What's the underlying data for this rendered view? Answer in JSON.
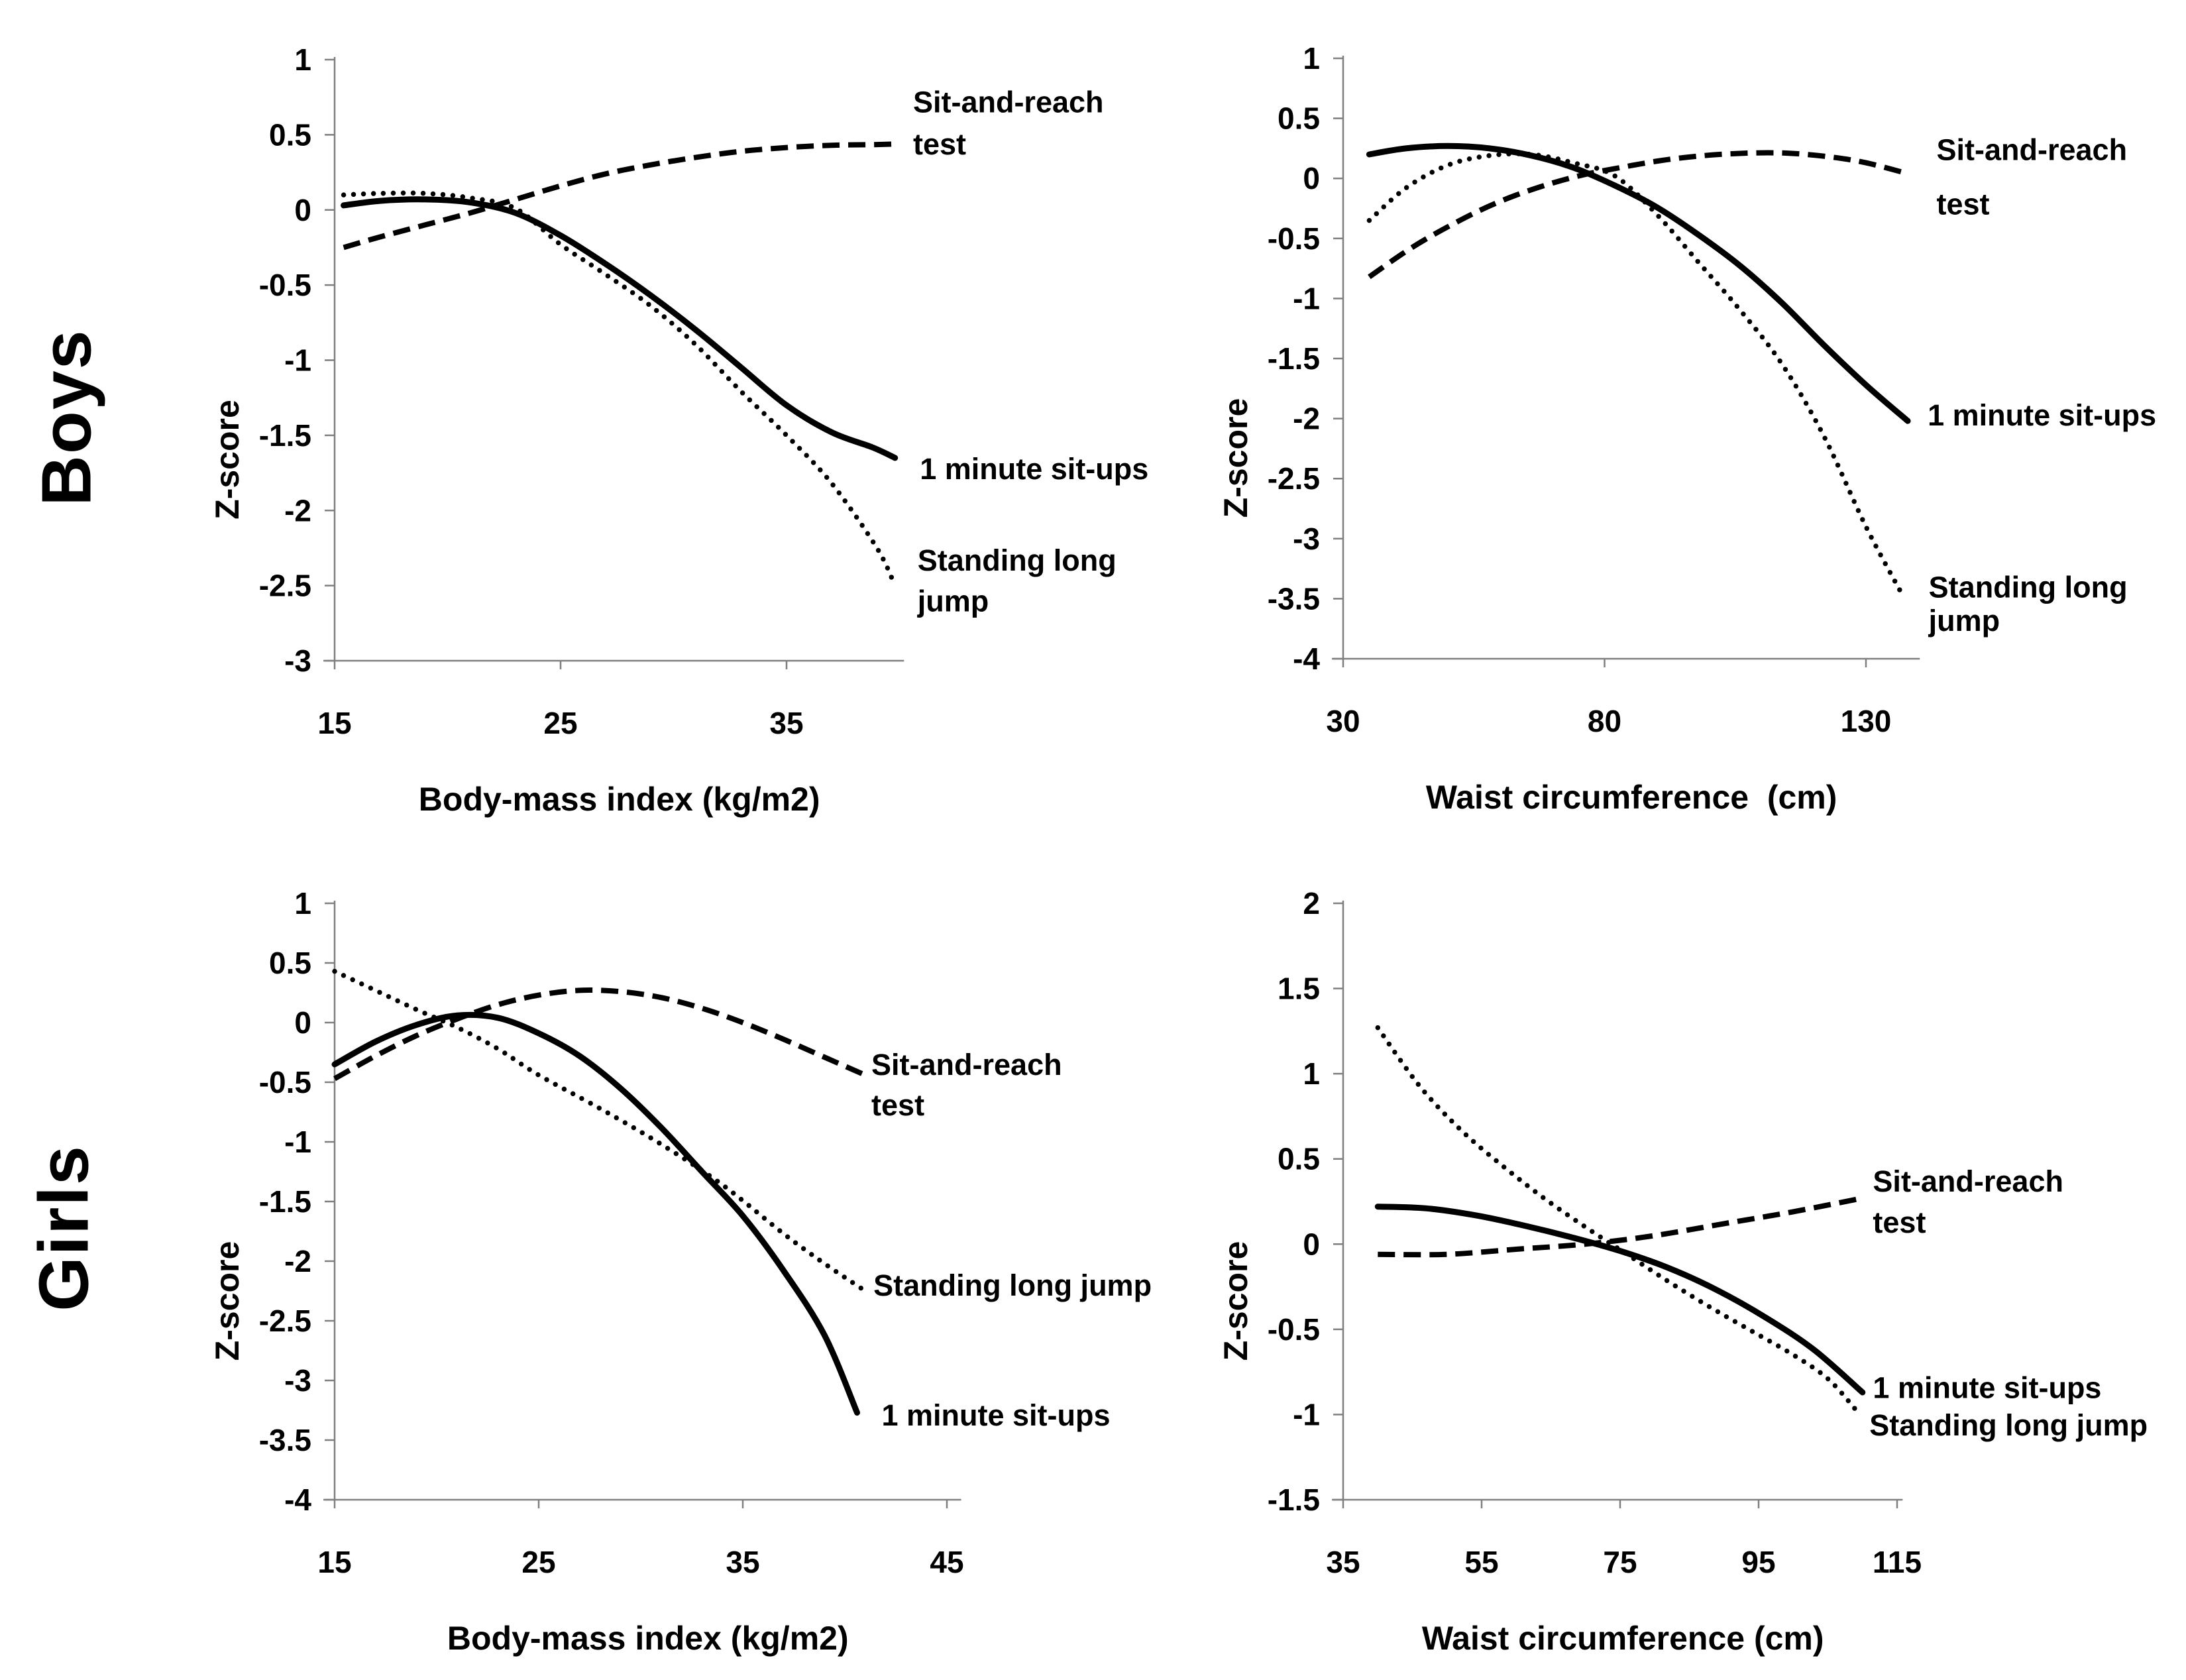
{
  "figure": {
    "row_labels": [
      {
        "text": "Boys"
      },
      {
        "text": "Girls"
      }
    ],
    "colors": {
      "curve": "#000000",
      "axis": "#7f7f7f",
      "text": "#000000",
      "background": "#ffffff"
    }
  },
  "chart_data": [
    {
      "id": "boys-bmi",
      "row": "Boys",
      "type": "line",
      "xlabel": "Body-mass index (kg/m2)",
      "ylabel": "Z-score",
      "xlim": [
        15,
        40.2
      ],
      "ylim": [
        -3,
        1
      ],
      "xticks": [
        15,
        25,
        35
      ],
      "yticks": [
        1,
        0.5,
        0,
        -0.5,
        -1,
        -1.5,
        -2,
        -2.5,
        -3
      ],
      "grid": false,
      "legend_position": "inline-annotations",
      "series": [
        {
          "name": "Sit-and-reach test",
          "line_style": "dashed",
          "x": [
            15.4,
            17,
            19,
            21,
            23,
            25,
            27,
            29,
            31,
            33,
            35,
            37,
            39,
            40
          ],
          "y": [
            -0.25,
            -0.18,
            -0.1,
            -0.02,
            0.07,
            0.16,
            0.24,
            0.3,
            0.35,
            0.39,
            0.415,
            0.43,
            0.435,
            0.44
          ],
          "annotations": [
            {
              "text": "Sit-and-reach",
              "x": 40.6,
              "y": 0.72
            },
            {
              "text": "test",
              "x": 40.6,
              "y": 0.44
            }
          ]
        },
        {
          "name": "1 minute sit-ups",
          "line_style": "solid",
          "x": [
            15.4,
            17,
            19,
            21,
            23,
            25,
            27,
            29,
            31,
            33,
            35,
            37,
            38.8,
            39.8
          ],
          "y": [
            0.03,
            0.06,
            0.07,
            0.05,
            -0.02,
            -0.17,
            -0.36,
            -0.57,
            -0.8,
            -1.05,
            -1.3,
            -1.48,
            -1.58,
            -1.65
          ],
          "annotations": [
            {
              "text": "1 minute sit-ups",
              "x": 40.9,
              "y": -1.72
            }
          ]
        },
        {
          "name": "Standing long jump",
          "line_style": "dotted",
          "x": [
            15.4,
            17,
            19,
            21,
            23,
            25,
            27,
            29,
            31,
            33,
            35,
            37,
            39,
            39.8
          ],
          "y": [
            0.1,
            0.11,
            0.11,
            0.08,
            0.01,
            -0.23,
            -0.43,
            -0.64,
            -0.9,
            -1.21,
            -1.5,
            -1.82,
            -2.25,
            -2.5
          ],
          "annotations": [
            {
              "text": "Standing long",
              "x": 40.8,
              "y": -2.33
            },
            {
              "text": "jump",
              "x": 40.8,
              "y": -2.6
            }
          ]
        }
      ]
    },
    {
      "id": "boys-waist",
      "row": "Boys",
      "type": "line",
      "xlabel": "Waist circumference  (cm)",
      "ylabel": "Z-score",
      "xlim": [
        30,
        140.3
      ],
      "ylim": [
        -4,
        1
      ],
      "xticks": [
        30,
        80,
        130
      ],
      "yticks": [
        1,
        0.5,
        0,
        -0.5,
        -1,
        -1.5,
        -2,
        -2.5,
        -3,
        -3.5,
        -4
      ],
      "grid": false,
      "legend_position": "inline-annotations",
      "series": [
        {
          "name": "Sit-and-reach test",
          "line_style": "dashed",
          "x": [
            35,
            43,
            51,
            59,
            67,
            75,
            83,
            91,
            99,
            107,
            115,
            123,
            130,
            138
          ],
          "y": [
            -0.82,
            -0.58,
            -0.38,
            -0.21,
            -0.08,
            0.02,
            0.09,
            0.15,
            0.19,
            0.21,
            0.21,
            0.18,
            0.13,
            0.04
          ],
          "annotations": [
            {
              "text": "Sit-and-reach",
              "x": 143.5,
              "y": 0.24
            },
            {
              "text": "test",
              "x": 143.5,
              "y": -0.21
            }
          ]
        },
        {
          "name": "1 minute sit-ups",
          "line_style": "solid",
          "x": [
            35,
            42,
            50,
            58,
            66,
            74,
            82,
            90,
            98,
            106,
            114,
            122,
            130,
            138
          ],
          "y": [
            0.2,
            0.25,
            0.27,
            0.25,
            0.19,
            0.09,
            -0.06,
            -0.24,
            -0.47,
            -0.73,
            -1.04,
            -1.39,
            -1.72,
            -2.02
          ],
          "annotations": [
            {
              "text": "1 minute sit-ups",
              "x": 141.8,
              "y": -1.97
            }
          ]
        },
        {
          "name": "Standing long jump",
          "line_style": "dotted",
          "x": [
            35,
            42,
            50,
            58,
            66,
            74,
            82,
            90,
            98,
            106,
            114,
            122,
            130,
            137
          ],
          "y": [
            -0.35,
            -0.08,
            0.11,
            0.19,
            0.2,
            0.13,
            0.02,
            -0.3,
            -0.7,
            -1.1,
            -1.55,
            -2.15,
            -2.9,
            -3.47
          ],
          "annotations": [
            {
              "text": "Standing long",
              "x": 142,
              "y": -3.4
            },
            {
              "text": "jump",
              "x": 142,
              "y": -3.68
            }
          ]
        }
      ]
    },
    {
      "id": "girls-bmi",
      "row": "Girls",
      "type": "line",
      "xlabel": "Body-mass index (kg/m2)",
      "ylabel": "Z-score",
      "xlim": [
        15,
        45.7
      ],
      "ylim": [
        -4,
        1
      ],
      "xticks": [
        15,
        25,
        35,
        45
      ],
      "yticks": [
        1,
        0.5,
        0,
        -0.5,
        -1,
        -1.5,
        -2,
        -2.5,
        -3,
        -3.5,
        -4
      ],
      "grid": false,
      "legend_position": "inline-annotations",
      "series": [
        {
          "name": "Sit-and-reach test",
          "line_style": "dashed",
          "x": [
            15,
            17,
            19,
            21,
            23,
            25,
            27,
            29,
            31,
            33,
            35,
            37,
            39,
            41
          ],
          "y": [
            -0.47,
            -0.28,
            -0.11,
            0.03,
            0.15,
            0.23,
            0.27,
            0.26,
            0.21,
            0.12,
            0.0,
            -0.14,
            -0.29,
            -0.44
          ],
          "annotations": [
            {
              "text": "Sit-and-reach",
              "x": 41.3,
              "y": -0.35
            },
            {
              "text": "test",
              "x": 41.3,
              "y": -0.69
            }
          ]
        },
        {
          "name": "1 minute sit-ups",
          "line_style": "solid",
          "x": [
            15,
            17,
            19,
            21,
            23,
            25,
            27,
            29,
            31,
            33,
            35,
            37,
            39,
            40.6
          ],
          "y": [
            -0.35,
            -0.16,
            -0.02,
            0.06,
            0.04,
            -0.09,
            -0.28,
            -0.55,
            -0.88,
            -1.25,
            -1.62,
            -2.08,
            -2.62,
            -3.27
          ],
          "annotations": [
            {
              "text": "1 minute sit-ups",
              "x": 41.8,
              "y": -3.29
            }
          ]
        },
        {
          "name": "Standing long jump",
          "line_style": "dotted",
          "x": [
            15,
            17,
            19,
            21,
            23,
            25,
            28,
            31,
            34,
            37,
            39,
            41
          ],
          "y": [
            0.43,
            0.27,
            0.11,
            -0.04,
            -0.22,
            -0.44,
            -0.72,
            -1.02,
            -1.36,
            -1.77,
            -2.02,
            -2.25
          ],
          "annotations": [
            {
              "text": "Standing long jump",
              "x": 41.4,
              "y": -2.2
            }
          ]
        }
      ]
    },
    {
      "id": "girls-waist",
      "row": "Girls",
      "type": "line",
      "xlabel": "Waist circumference (cm)",
      "ylabel": "Z-score",
      "xlim": [
        35,
        115.8
      ],
      "ylim": [
        -1.5,
        2
      ],
      "xticks": [
        35,
        55,
        75,
        95,
        115
      ],
      "yticks": [
        2,
        1.5,
        1,
        0.5,
        0,
        -0.5,
        -1,
        -1.5
      ],
      "grid": false,
      "legend_position": "inline-annotations",
      "series": [
        {
          "name": "Sit-and-reach test",
          "line_style": "dashed",
          "x": [
            40,
            50,
            60,
            70,
            80,
            90,
            100,
            110
          ],
          "y": [
            -0.06,
            -0.06,
            -0.03,
            0.0,
            0.05,
            0.12,
            0.19,
            0.27
          ],
          "annotations": [
            {
              "text": "Sit-and-reach",
              "x": 111.5,
              "y": 0.37
            },
            {
              "text": "test",
              "x": 111.5,
              "y": 0.13
            }
          ]
        },
        {
          "name": "1 minute sit-ups",
          "line_style": "solid",
          "x": [
            40,
            47,
            54,
            61,
            68,
            75,
            82,
            89,
            96,
            103,
            110
          ],
          "y": [
            0.22,
            0.21,
            0.17,
            0.11,
            0.04,
            -0.04,
            -0.14,
            -0.27,
            -0.43,
            -0.62,
            -0.87
          ],
          "annotations": [
            {
              "text": "1 minute sit-ups",
              "x": 111.5,
              "y": -0.84
            }
          ]
        },
        {
          "name": "Standing long jump",
          "line_style": "dotted",
          "x": [
            40,
            46,
            52,
            58,
            64,
            70,
            76,
            82,
            88,
            94,
            100,
            105,
            109
          ],
          "y": [
            1.27,
            0.93,
            0.67,
            0.46,
            0.27,
            0.1,
            -0.06,
            -0.22,
            -0.37,
            -0.51,
            -0.65,
            -0.79,
            -0.97
          ],
          "annotations": [
            {
              "text": "Standing long jump",
              "x": 111,
              "y": -1.06
            }
          ]
        }
      ]
    }
  ]
}
